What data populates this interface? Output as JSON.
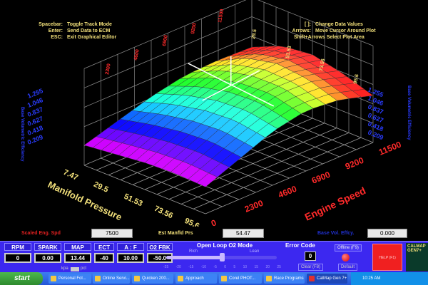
{
  "help_left": [
    {
      "key": "Spacebar:",
      "desc": "Toggle Track Mode"
    },
    {
      "key": "Enter:",
      "desc": "Send Data to ECM"
    },
    {
      "key": "ESC:",
      "desc": "Exit Graphical Editor"
    }
  ],
  "help_right": [
    {
      "key": "[ ]:",
      "desc": "Change Data Values"
    },
    {
      "key": "Arrows:",
      "desc": "Move Cursor Around Plot"
    },
    {
      "key": "Shift+Arrows",
      "desc": "Select Plot Area"
    }
  ],
  "chart_data": {
    "type": "surface3d",
    "xlabel": "Manifold Pressure",
    "ylabel": "Engine Speed",
    "zlabel": "Base Volumetric Efficiency",
    "x_ticks": [
      "7.47",
      "29.5",
      "51.53",
      "73.56",
      "95.6"
    ],
    "y_ticks": [
      "0",
      "2300",
      "4600",
      "6900",
      "9200",
      "11500"
    ],
    "z_ticks": [
      "1.255",
      "1.046",
      "0.837",
      "0.627",
      "0.418",
      "0.209"
    ],
    "zlim": [
      0,
      1.255
    ],
    "values": [
      [
        0.3,
        0.45,
        0.6,
        0.7,
        0.72,
        0.7
      ],
      [
        0.35,
        0.55,
        0.75,
        0.9,
        0.95,
        0.9
      ],
      [
        0.4,
        0.62,
        0.85,
        1.0,
        1.05,
        0.95
      ],
      [
        0.42,
        0.65,
        0.88,
        1.02,
        1.0,
        0.85
      ],
      [
        0.4,
        0.6,
        0.8,
        0.9,
        0.85,
        0.7
      ]
    ],
    "colors": {
      "x_axis": "#f2e07a",
      "y_axis": "#ff2a2a",
      "z_axis": "#2a3cff"
    }
  },
  "status": {
    "scaled_eng_spd_label": "Scaled Eng. Spd",
    "scaled_eng_spd": "7500",
    "est_manfld_prs_label": "Est Manfld Prs",
    "est_manfld_prs": "54.47",
    "base_vol_effcy_label": "Base Vol. Effcy.",
    "base_vol_effcy": "0.000"
  },
  "gauges": [
    {
      "label": "RPM",
      "value": "0"
    },
    {
      "label": "SPARK",
      "value": "0.00"
    },
    {
      "label": "MAP",
      "value": "13.44"
    },
    {
      "label": "ECT",
      "value": "-40"
    },
    {
      "label": "A : F",
      "value": "10.00"
    },
    {
      "label": "O2 FBK",
      "value": "-50.0"
    }
  ],
  "map_units": {
    "kpa": "kpa",
    "pct": "pct"
  },
  "o2": {
    "title": "Open Loop O2 Mode",
    "rich": "Rich",
    "lean": "Lean",
    "scale": [
      "-25",
      "-20",
      "-15",
      "-10",
      "-5",
      "0",
      "5",
      "10",
      "15",
      "20",
      "25"
    ],
    "value": 0
  },
  "error": {
    "title": "Error Code",
    "value": "0",
    "clear": "Clear (F8)"
  },
  "offline": {
    "label": "Offline (F9)",
    "default": "Default"
  },
  "help_button": "HELP (F1)",
  "logo": "CALMAP GEN7+",
  "taskbar": {
    "start": "start",
    "items": [
      "Personal Fol...",
      "Online Servi...",
      "Quicken 200...",
      "Approach",
      "Corel PHOT...",
      "Race Programs",
      "CalMap Gen 7+"
    ],
    "clock": "10:25 AM"
  }
}
